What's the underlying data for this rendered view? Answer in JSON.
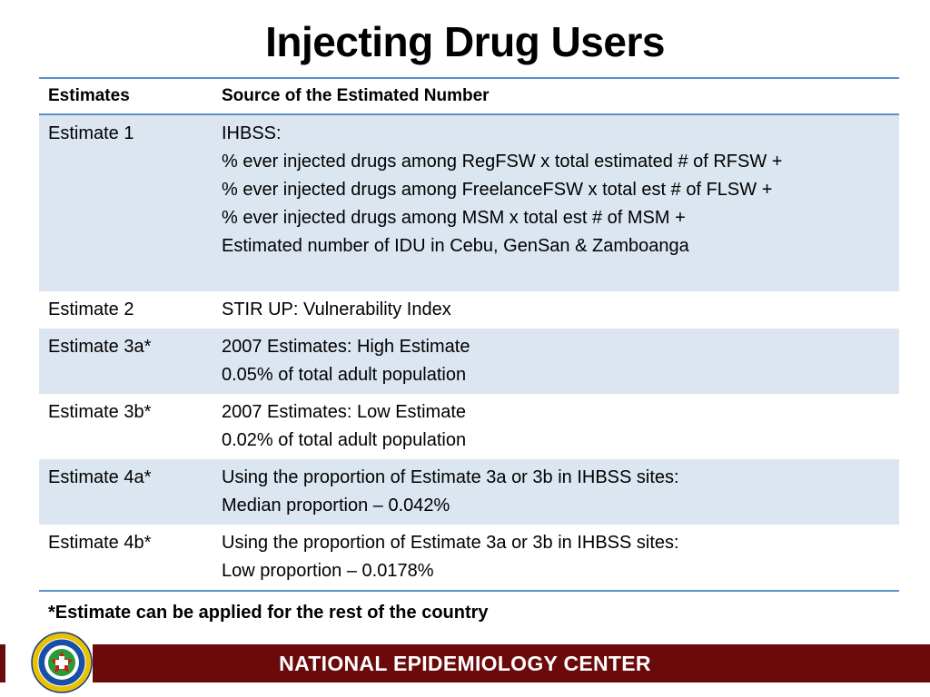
{
  "title": "Injecting Drug Users",
  "table": {
    "headers": [
      "Estimates",
      "Source of the Estimated Number"
    ],
    "rows": [
      {
        "label": "Estimate 1",
        "lines": [
          "IHBSS:",
          "% ever injected drugs among RegFSW x total estimated # of RFSW +",
          "% ever injected drugs among FreelanceFSW x total est # of FLSW +",
          "% ever injected drugs among MSM x total est # of MSM +",
          "Estimated number of IDU in Cebu, GenSan & Zamboanga"
        ]
      },
      {
        "label": "Estimate 2",
        "lines": [
          "STIR UP: Vulnerability Index"
        ]
      },
      {
        "label": "Estimate 3a*",
        "lines": [
          "2007 Estimates: High Estimate",
          "0.05% of total adult population"
        ]
      },
      {
        "label": "Estimate 3b*",
        "lines": [
          "2007 Estimates: Low Estimate",
          "0.02% of total adult population"
        ]
      },
      {
        "label": "Estimate 4a*",
        "lines": [
          "Using the proportion of Estimate 3a or 3b in IHBSS sites:",
          "Median proportion – 0.042%"
        ]
      },
      {
        "label": "Estimate 4b*",
        "lines": [
          "Using the proportion of Estimate 3a or 3b in IHBSS sites:",
          "Low proportion – 0.0178%"
        ]
      }
    ]
  },
  "footnote": "*Estimate can be applied for the rest of the country",
  "footer": {
    "text": "NATIONAL EPIDEMIOLOGY CENTER",
    "bar_color": "#6b0a0a",
    "logo": "department-of-health-seal",
    "logo_text": "REPUBLIC · PHILIPPINES · DEPARTMENT · HEALTH"
  },
  "colors": {
    "table_rule": "#5b8fd0",
    "row_band": "#dce6f1"
  }
}
